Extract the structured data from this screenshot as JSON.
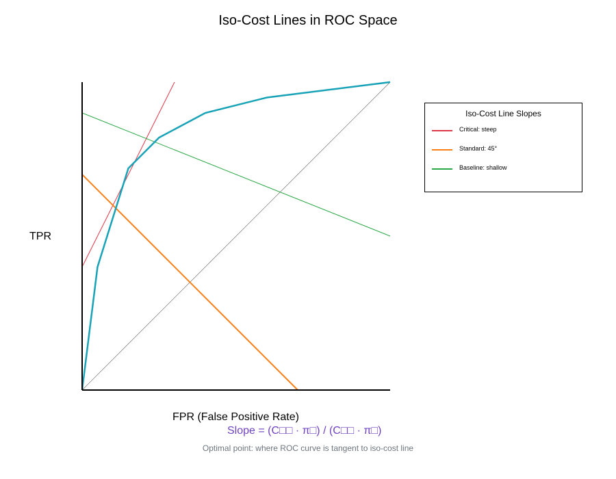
{
  "chart_data": {
    "type": "line",
    "title": "Iso-Cost Lines in ROC Space",
    "xlabel": "FPR (False Positive Rate)",
    "ylabel": "TPR",
    "xlim": [
      0,
      1
    ],
    "ylim": [
      0,
      1
    ],
    "grid": false,
    "legend": {
      "title": "Iso-Cost Line Slopes",
      "placement": "right"
    },
    "roc_curve": {
      "color": "#17a2b8",
      "x": [
        0,
        0.05,
        0.15,
        0.25,
        0.4,
        0.6,
        1.0
      ],
      "y": [
        0,
        0.4,
        0.72,
        0.82,
        0.9,
        0.95,
        1.0
      ]
    },
    "diagonal": {
      "color": "#555555",
      "x": [
        0,
        1
      ],
      "y": [
        0,
        1
      ]
    },
    "series": [
      {
        "name": "Critical: steep",
        "color": "#dc3545",
        "x": [
          0,
          0.3
        ],
        "y": [
          0.4,
          1.0
        ]
      },
      {
        "name": "Standard: 45°",
        "color": "#fd7e14",
        "x": [
          0,
          0.7
        ],
        "y": [
          0.7,
          0
        ]
      },
      {
        "name": "Baseline: shallow",
        "color": "#28a745",
        "x": [
          0,
          1
        ],
        "y": [
          0.9,
          0.5
        ]
      }
    ],
    "annotations": {
      "formula": "Slope = (C□□ · π□) / (C□□ · π□)",
      "formula_color": "#6f42c1",
      "note": "Optimal point: where ROC curve is tangent to iso-cost line",
      "note_color": "#6c757d"
    }
  }
}
